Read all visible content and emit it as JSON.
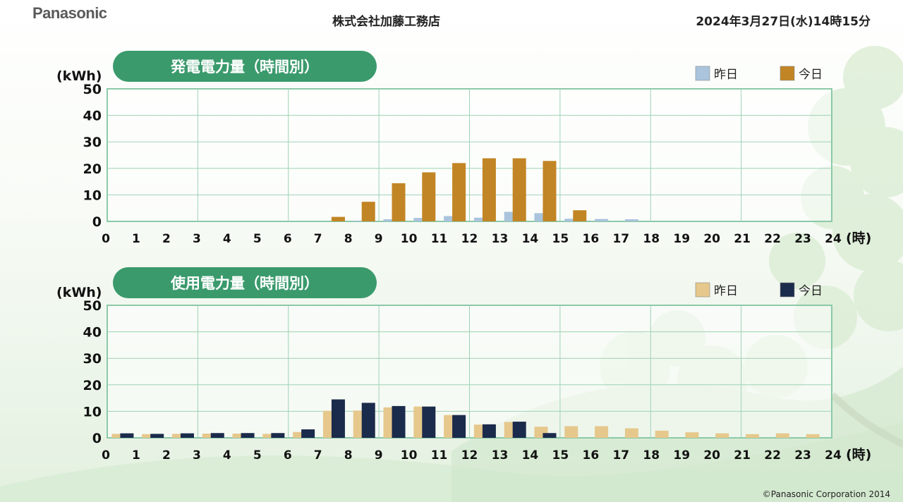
{
  "header": {
    "brand": "Panasonic",
    "company": "株式会社加藤工務店",
    "datetime": "2024年3月27日(水)14時15分"
  },
  "footer": {
    "copyright": "©Panasonic Corporation 2014"
  },
  "colors": {
    "pill": "#3a9a6c",
    "gen_yesterday": "#a9c4dc",
    "gen_today": "#c28525",
    "use_yesterday": "#e6c88c",
    "use_today": "#1b2b4b",
    "grid": "#9ed2b4"
  },
  "chart_data": [
    {
      "type": "bar",
      "title": "発電電力量（時間別）",
      "ylabel": "(kWh)",
      "xlabel": "(時)",
      "ylim": [
        0,
        50
      ],
      "yticks": [
        "0",
        "10",
        "20",
        "30",
        "40",
        "50"
      ],
      "xticks": [
        "0",
        "1",
        "2",
        "3",
        "4",
        "5",
        "6",
        "7",
        "8",
        "9",
        "10",
        "11",
        "12",
        "13",
        "14",
        "15",
        "16",
        "17",
        "18",
        "19",
        "20",
        "21",
        "22",
        "23",
        "24"
      ],
      "grid": true,
      "legend_position": "top-right",
      "series": [
        {
          "name": "昨日",
          "color": "#a9c4dc",
          "values": [
            0,
            0,
            0,
            0,
            0,
            0,
            0,
            0,
            0.3,
            0.8,
            1.3,
            2.0,
            1.4,
            3.6,
            3.1,
            1.0,
            0.9,
            0.8,
            0,
            0,
            0,
            0,
            0,
            0
          ]
        },
        {
          "name": "今日",
          "color": "#c28525",
          "values": [
            0,
            0,
            0,
            0,
            0,
            0,
            0,
            1.7,
            7.4,
            14.4,
            18.5,
            22.0,
            23.8,
            23.8,
            22.8,
            4.2,
            null,
            null,
            null,
            null,
            null,
            null,
            null,
            null
          ]
        }
      ]
    },
    {
      "type": "bar",
      "title": "使用電力量（時間別）",
      "ylabel": "(kWh)",
      "xlabel": "(時)",
      "ylim": [
        0,
        50
      ],
      "yticks": [
        "0",
        "10",
        "20",
        "30",
        "40",
        "50"
      ],
      "xticks": [
        "0",
        "1",
        "2",
        "3",
        "4",
        "5",
        "6",
        "7",
        "8",
        "9",
        "10",
        "11",
        "12",
        "13",
        "14",
        "15",
        "16",
        "17",
        "18",
        "19",
        "20",
        "21",
        "22",
        "23",
        "24"
      ],
      "grid": true,
      "legend_position": "top-right",
      "series": [
        {
          "name": "昨日",
          "color": "#e6c88c",
          "values": [
            1.5,
            1.4,
            1.5,
            1.6,
            1.6,
            1.5,
            2.2,
            10.2,
            10.3,
            11.5,
            11.8,
            8.6,
            5.0,
            6.0,
            4.2,
            4.4,
            4.4,
            3.6,
            2.7,
            2.1,
            1.7,
            1.4,
            1.7,
            1.4
          ]
        },
        {
          "name": "今日",
          "color": "#1b2b4b",
          "values": [
            1.7,
            1.5,
            1.7,
            1.8,
            1.8,
            1.8,
            3.2,
            14.5,
            13.2,
            12.0,
            11.8,
            8.6,
            5.1,
            6.1,
            1.8,
            null,
            null,
            null,
            null,
            null,
            null,
            null,
            null,
            null
          ]
        }
      ]
    }
  ]
}
